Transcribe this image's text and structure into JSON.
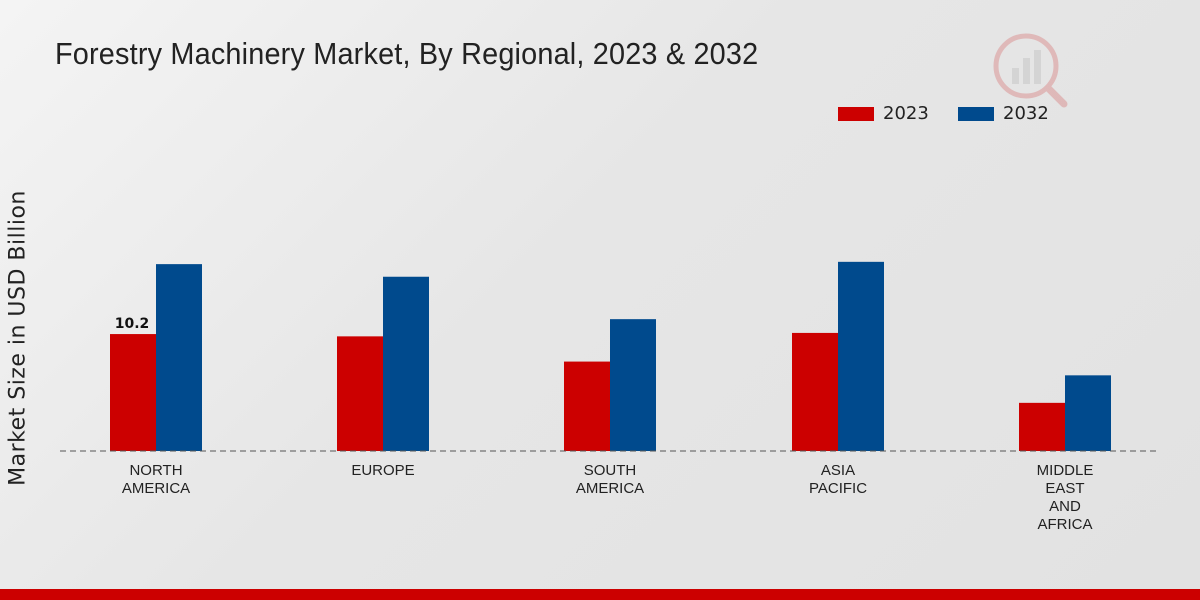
{
  "title": "Forestry Machinery Market, By Regional, 2023 & 2032",
  "colors": {
    "series_2023": "#cc0000",
    "series_2032": "#004a8d",
    "accent_bar": "#cc0000"
  },
  "logo_icon": "watermark-logo-icon",
  "chart_data": {
    "type": "bar",
    "title": "Forestry Machinery Market, By Regional, 2023 & 2032",
    "xlabel": "",
    "ylabel": "Market Size in USD Billion",
    "ylim": [
      0,
      28
    ],
    "grid": false,
    "legend_position": "top-right",
    "categories": [
      [
        "NORTH",
        "AMERICA"
      ],
      [
        "EUROPE"
      ],
      [
        "SOUTH",
        "AMERICA"
      ],
      [
        "ASIA",
        "PACIFIC"
      ],
      [
        "MIDDLE",
        "EAST",
        "AND",
        "AFRICA"
      ]
    ],
    "series": [
      {
        "name": "2023",
        "values": [
          10.2,
          10.0,
          7.8,
          10.3,
          4.2
        ]
      },
      {
        "name": "2032",
        "values": [
          16.3,
          15.2,
          11.5,
          16.5,
          6.6
        ]
      }
    ],
    "data_labels": [
      {
        "series": 0,
        "index": 0,
        "text": "10.2"
      }
    ]
  }
}
